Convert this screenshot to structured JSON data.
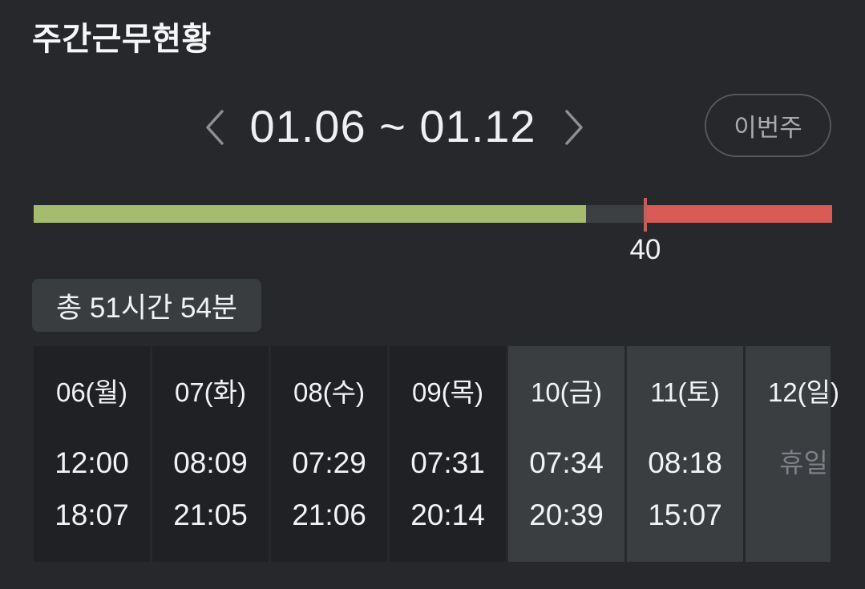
{
  "header": {
    "title": "주간근무현황"
  },
  "week_nav": {
    "range": "01.06 ~ 01.12",
    "this_week_label": "이번주",
    "prev_icon": "chevron-left",
    "next_icon": "chevron-right",
    "icon_color": "#8c8f93"
  },
  "progress": {
    "marker_label": "40",
    "marker_percent": 76.6,
    "marker_color": "#c05f5d",
    "segments": [
      {
        "name": "regular-worked",
        "color": "#a5bc6e",
        "percent": 69.2
      },
      {
        "name": "remaining-regular",
        "color": "#3d4043",
        "percent": 7.4
      },
      {
        "name": "overtime",
        "color": "#d85b56",
        "percent": 23.4
      }
    ]
  },
  "total": {
    "label": "총 51시간 54분"
  },
  "week_table": {
    "days": [
      {
        "label": "06(월)",
        "start": "12:00",
        "end": "18:07",
        "weekend": false
      },
      {
        "label": "07(화)",
        "start": "08:09",
        "end": "21:05",
        "weekend": false
      },
      {
        "label": "08(수)",
        "start": "07:29",
        "end": "21:06",
        "weekend": false
      },
      {
        "label": "09(목)",
        "start": "07:31",
        "end": "20:14",
        "weekend": false
      },
      {
        "label": "10(금)",
        "start": "07:34",
        "end": "20:39",
        "weekend": true
      },
      {
        "label": "11(토)",
        "start": "08:18",
        "end": "15:07",
        "weekend": true,
        "clipped": false
      },
      {
        "label": "12(일)",
        "holiday": "휴일",
        "weekend": true,
        "clipped": true
      }
    ]
  },
  "colors": {
    "page_bg": "#26282b",
    "cell_bg": "#1f2124",
    "weekend_cell_bg": "#3b3e41",
    "badge_bg": "#3a3d40",
    "muted_text": "#7d8084"
  }
}
